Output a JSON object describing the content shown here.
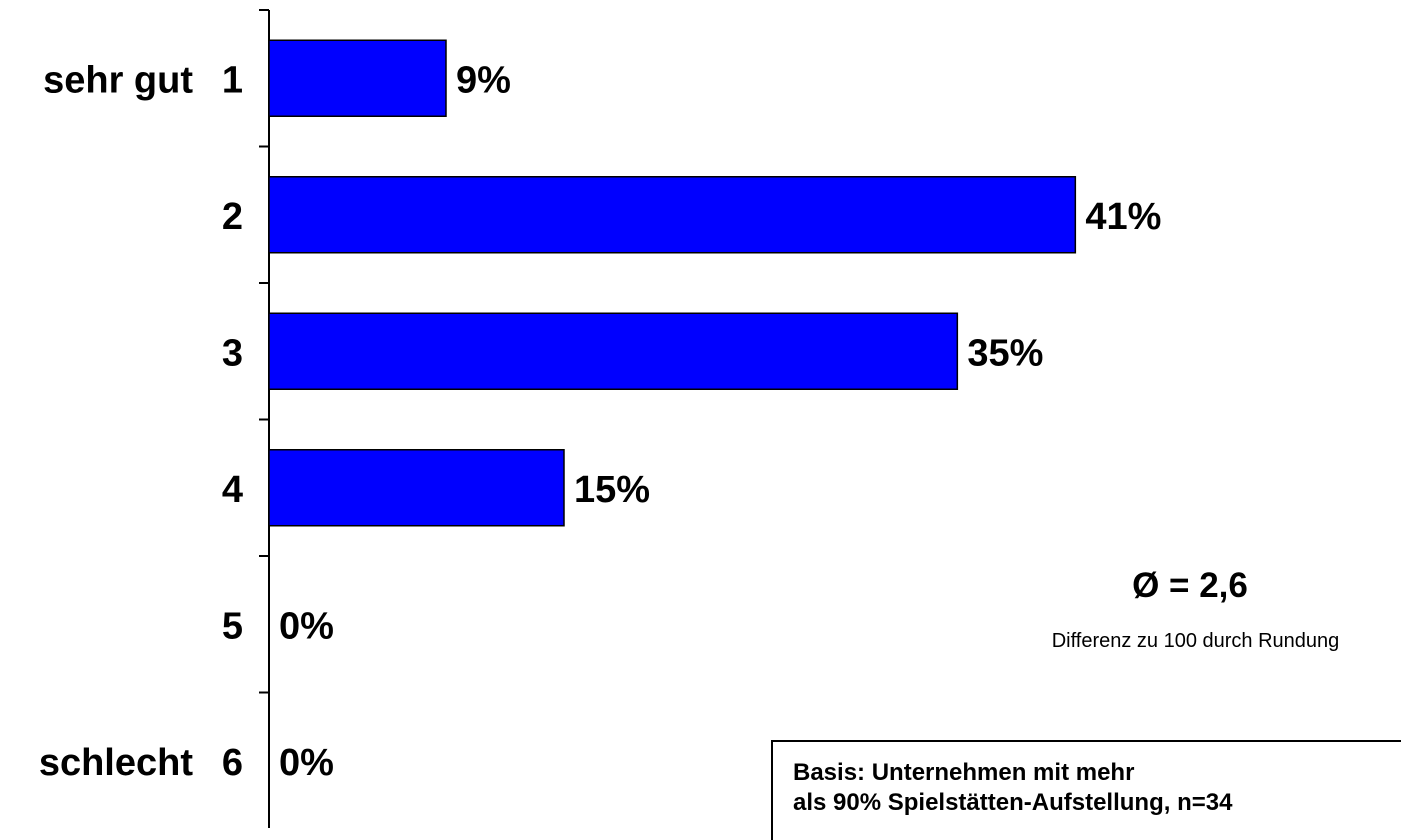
{
  "chart_data": {
    "type": "bar",
    "orientation": "horizontal",
    "categories": [
      "1",
      "2",
      "3",
      "4",
      "5",
      "6"
    ],
    "category_descriptors": [
      "sehr gut",
      "",
      "",
      "",
      "",
      "schlecht"
    ],
    "values": [
      9,
      41,
      35,
      15,
      0,
      0
    ],
    "value_labels": [
      "9%",
      "41%",
      "35%",
      "15%",
      "0%",
      "0%"
    ],
    "xlim": [
      0,
      60
    ],
    "bar_color": "#0000ff",
    "grid": false,
    "legend": "none"
  },
  "annotations": {
    "average": "Ø = 2,6",
    "rounding_note": "Differenz zu 100 durch Rundung",
    "basis_line1": "Basis: Unternehmen mit mehr",
    "basis_line2": "als 90% Spielstätten-Aufstellung, n=34"
  }
}
